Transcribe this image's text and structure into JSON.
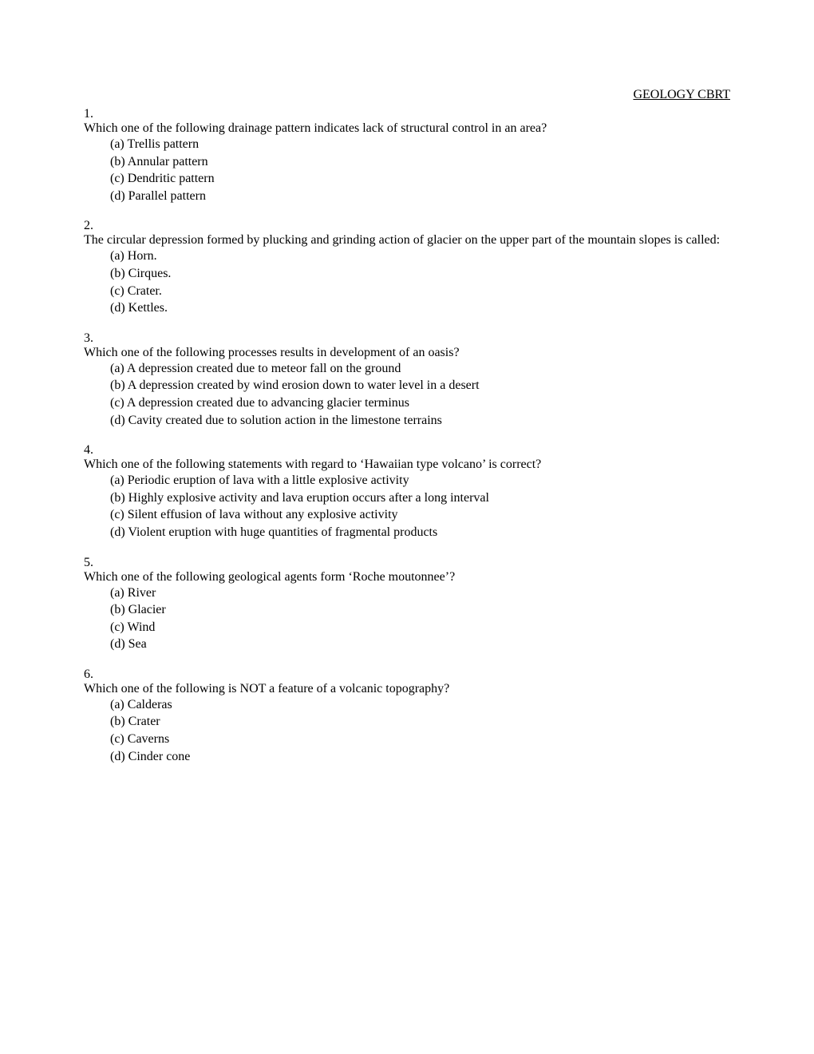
{
  "header": "GEOLOGY CBRT",
  "option_labels": [
    "(a)",
    "(b)",
    "(c)",
    "(d)"
  ],
  "questions": [
    {
      "num": "1.",
      "text": "Which one of the following drainage pattern indicates lack of structural control in an area?",
      "options": [
        "Trellis pattern",
        "Annular pattern",
        "Dendritic pattern",
        "Parallel pattern"
      ]
    },
    {
      "num": "2.",
      "text": "The circular depression formed by plucking and grinding action of glacier on the upper part of the mountain slopes is called:",
      "options": [
        "Horn.",
        "Cirques.",
        "Crater.",
        "Kettles."
      ]
    },
    {
      "num": "3.",
      "text": "Which one of the following processes results in development of an oasis?",
      "options": [
        "A depression created due to meteor fall on the ground",
        "A depression created by wind erosion down to water level in a desert",
        "A depression created due to advancing glacier terminus",
        "Cavity created due to solution action in the limestone terrains"
      ]
    },
    {
      "num": "4.",
      "text": "Which one of the following statements with regard to ‘Hawaiian type volcano’ is correct?",
      "options": [
        "Periodic eruption of lava with a little explosive activity",
        "Highly explosive activity and lava eruption occurs after a long interval",
        "Silent effusion of lava without any explosive activity",
        "Violent eruption with huge quantities of fragmental products"
      ]
    },
    {
      "num": "5.",
      "text": "Which one of the following geological agents form ‘Roche moutonnee’?",
      "options": [
        "River",
        "Glacier",
        "Wind",
        "Sea"
      ]
    },
    {
      "num": "6.",
      "text": "Which one of the following is NOT a feature of a volcanic topography?",
      "options": [
        "Calderas",
        "Crater",
        "Caverns",
        "Cinder cone"
      ]
    }
  ]
}
